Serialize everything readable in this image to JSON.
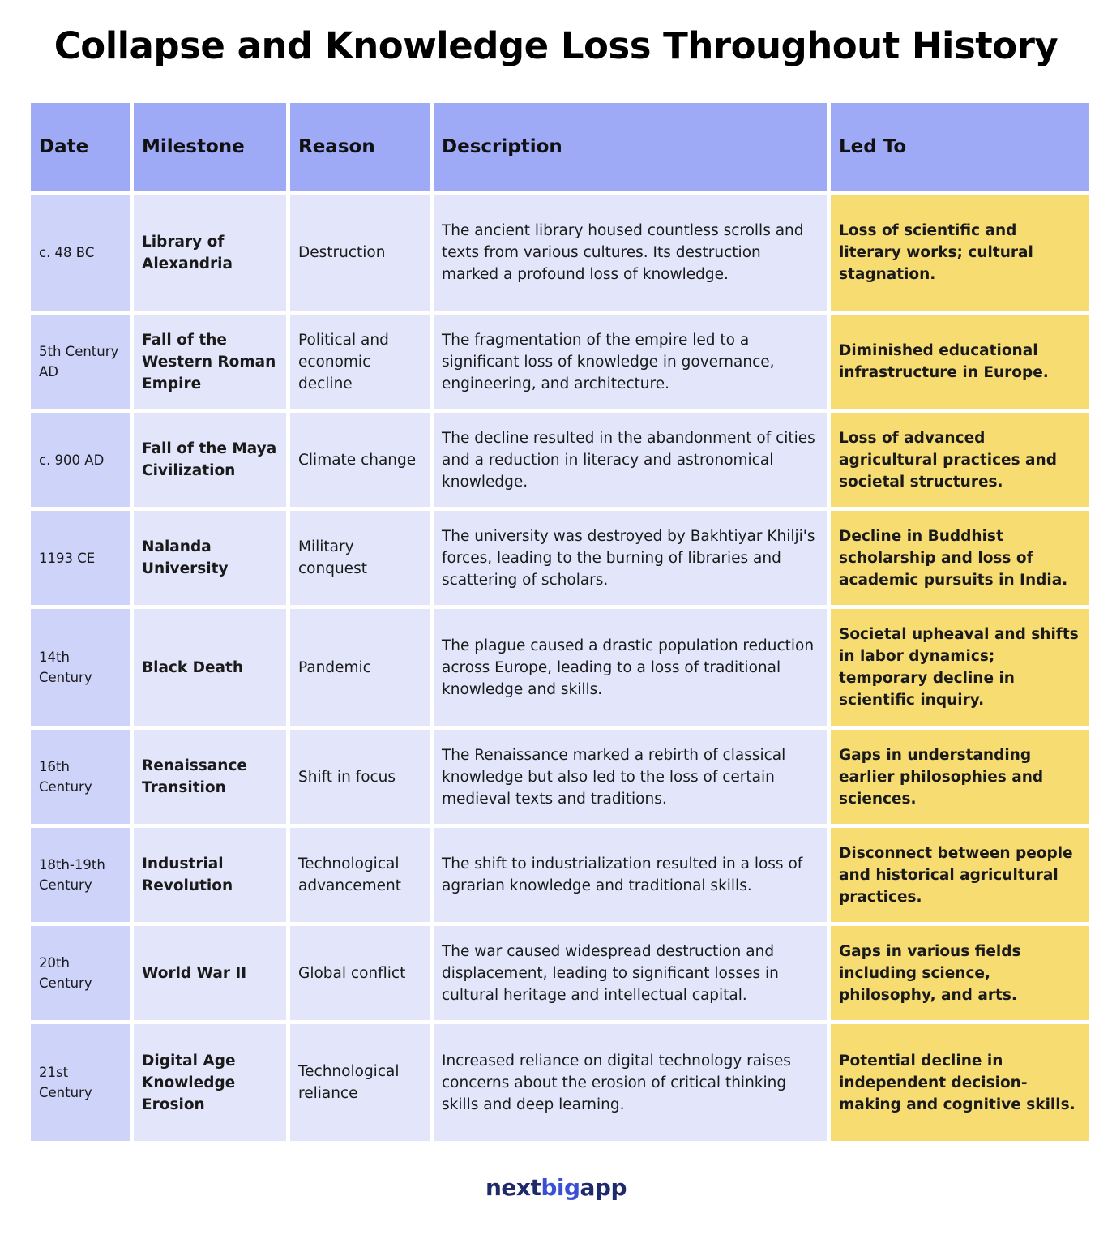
{
  "title": "Collapse and Knowledge Loss Throughout History",
  "table": {
    "headers": [
      "Date",
      "Milestone",
      "Reason",
      "Description",
      "Led To"
    ],
    "rows": [
      [
        "c. 48 BC",
        "Library of Alexandria",
        "Destruction",
        "The ancient library housed countless scrolls and texts from various cultures. Its destruction marked a profound loss of knowledge.",
        "Loss of scientific and literary works; cultural stagnation."
      ],
      [
        "5th Century AD",
        "Fall of the Western Roman Empire",
        "Political and economic decline",
        "The fragmentation of the empire led to a significant loss of knowledge in governance, engineering, and architecture.",
        "Diminished educational infrastructure in Europe."
      ],
      [
        "c. 900 AD",
        "Fall of the Maya Civilization",
        "Climate change",
        "The decline resulted in the abandonment of cities and a reduction in literacy and astronomical knowledge.",
        "Loss of advanced agricultural practices and societal structures."
      ],
      [
        "1193 CE",
        "Nalanda University",
        "Military conquest",
        "The university was destroyed by Bakhtiyar Khilji's forces, leading to the burning of libraries and scattering of scholars.",
        "Decline in Buddhist scholarship and loss of academic pursuits in India."
      ],
      [
        "14th Century",
        "Black Death",
        "Pandemic",
        "The plague caused a drastic population reduction across Europe, leading to a loss of traditional knowledge and skills.",
        "Societal upheaval and shifts in labor dynamics; temporary decline in scientific inquiry."
      ],
      [
        "16th Century",
        "Renaissance Transition",
        "Shift in focus",
        "The Renaissance marked a rebirth of classical knowledge but also led to the loss of certain medieval texts and traditions.",
        "Gaps in understanding earlier philosophies and sciences."
      ],
      [
        "18th-19th Century",
        "Industrial Revolution",
        "Technological advancement",
        "The shift to industrialization resulted in a loss of agrarian knowledge and traditional skills.",
        "Disconnect between people and historical agricultural practices."
      ],
      [
        "20th Century",
        "World War II",
        "Global conflict",
        "The war caused widespread destruction and displacement, leading to significant losses in cultural heritage and intellectual capital.",
        "Gaps in various fields including science, philosophy, and arts."
      ],
      [
        "21st Century",
        "Digital Age Knowledge Erosion",
        "Technological reliance",
        "Increased reliance on digital technology raises concerns about the erosion of critical thinking skills and deep learning.",
        "Potential decline in independent decision-making and cognitive skills."
      ]
    ]
  },
  "logo": {
    "parts": [
      "next",
      "big",
      "app"
    ]
  }
}
